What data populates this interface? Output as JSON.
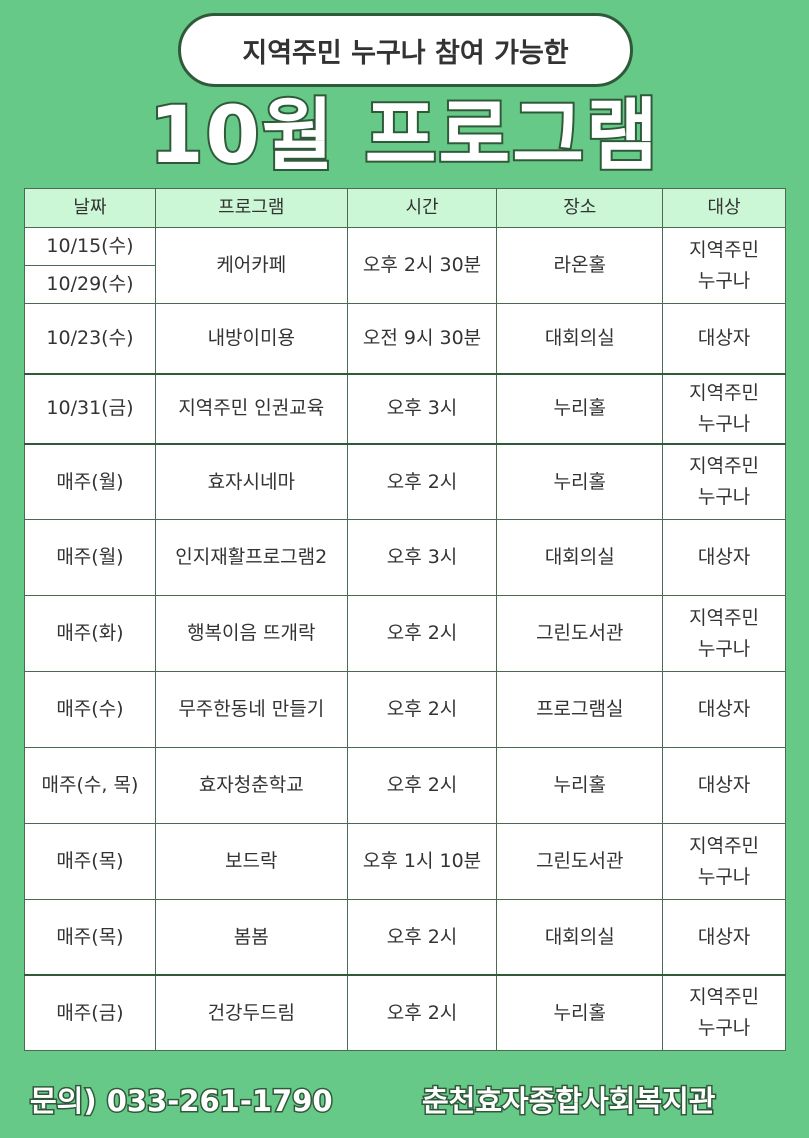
{
  "header": {
    "subtitle": "지역주민 누구나 참여 가능한",
    "title": "10월 프로그램"
  },
  "table": {
    "columns": [
      "날짜",
      "프로그램",
      "시간",
      "장소",
      "대상"
    ],
    "rows": [
      {
        "dates": [
          "10/15(수)",
          "10/29(수)"
        ],
        "program": "케어카페",
        "time": "오후 2시 30분",
        "place": "라온홀",
        "target": [
          "지역주민",
          "누구나"
        ]
      },
      {
        "dates": [
          "10/23(수)"
        ],
        "program": "내방이미용",
        "time": "오전 9시 30분",
        "place": "대회의실",
        "target": [
          "대상자"
        ]
      },
      {
        "dates": [
          "10/31(금)"
        ],
        "program": "지역주민 인권교육",
        "time": "오후 3시",
        "place": "누리홀",
        "target": [
          "지역주민",
          "누구나"
        ]
      },
      {
        "dates": [
          "매주(월)"
        ],
        "program": "효자시네마",
        "time": "오후 2시",
        "place": "누리홀",
        "target": [
          "지역주민",
          "누구나"
        ]
      },
      {
        "dates": [
          "매주(월)"
        ],
        "program": "인지재활프로그램2",
        "time": "오후 3시",
        "place": "대회의실",
        "target": [
          "대상자"
        ]
      },
      {
        "dates": [
          "매주(화)"
        ],
        "program": "행복이음 뜨개락",
        "time": "오후 2시",
        "place": "그린도서관",
        "target": [
          "지역주민",
          "누구나"
        ]
      },
      {
        "dates": [
          "매주(수)"
        ],
        "program": "무주한동네 만들기",
        "time": "오후 2시",
        "place": "프로그램실",
        "target": [
          "대상자"
        ]
      },
      {
        "dates": [
          "매주(수, 목)"
        ],
        "program": "효자청춘학교",
        "time": "오후 2시",
        "place": "누리홀",
        "target": [
          "대상자"
        ]
      },
      {
        "dates": [
          "매주(목)"
        ],
        "program": "보드락",
        "time": "오후 1시 10분",
        "place": "그린도서관",
        "target": [
          "지역주민",
          "누구나"
        ]
      },
      {
        "dates": [
          "매주(목)"
        ],
        "program": "봄봄",
        "time": "오후 2시",
        "place": "대회의실",
        "target": [
          "대상자"
        ]
      },
      {
        "dates": [
          "매주(금)"
        ],
        "program": "건강두드림",
        "time": "오후 2시",
        "place": "누리홀",
        "target": [
          "지역주민",
          "누구나"
        ]
      }
    ]
  },
  "footer": {
    "contact": "문의) 033-261-1790",
    "org": "춘천효자종합사회복지관"
  },
  "colors": {
    "background": "#67c987",
    "header_row": "#ccf7d6",
    "outline": "#2f5a3a"
  }
}
